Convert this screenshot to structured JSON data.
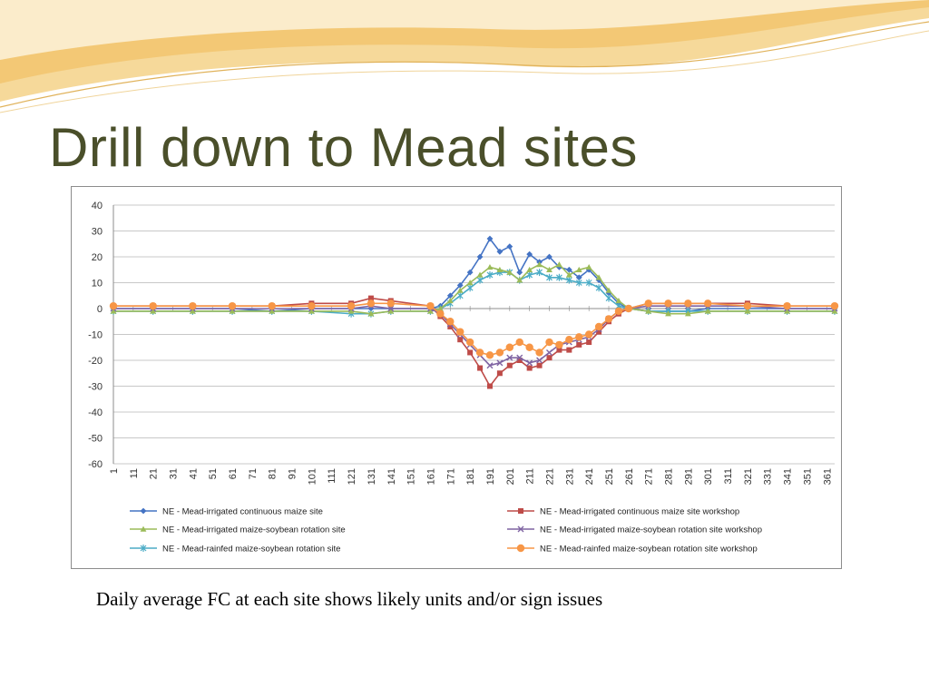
{
  "slide": {
    "title": "Drill down to Mead sites",
    "caption": "Daily average FC at each site shows likely units and/or sign issues"
  },
  "colors": {
    "title": "#4a4f2a",
    "banner": "#f2c46e",
    "series": [
      "#4473c4",
      "#be4b48",
      "#9bbb59",
      "#7f64a2",
      "#4bacc6",
      "#f79646"
    ]
  },
  "chart_data": {
    "type": "line",
    "title": "",
    "xlabel": "",
    "ylabel": "",
    "ylim": [
      -60,
      40
    ],
    "yticks": [
      40,
      30,
      20,
      10,
      0,
      -10,
      -20,
      -30,
      -40,
      -50,
      -60
    ],
    "xlim": [
      1,
      365
    ],
    "xticks": [
      1,
      11,
      21,
      31,
      41,
      51,
      61,
      71,
      81,
      91,
      101,
      111,
      121,
      131,
      141,
      151,
      161,
      171,
      181,
      191,
      201,
      211,
      221,
      231,
      241,
      251,
      261,
      271,
      281,
      291,
      301,
      311,
      321,
      331,
      341,
      351,
      361
    ],
    "grid": "horizontal",
    "legend_position": "bottom",
    "x": [
      1,
      21,
      41,
      61,
      81,
      101,
      121,
      131,
      141,
      161,
      166,
      171,
      176,
      181,
      186,
      191,
      196,
      201,
      206,
      211,
      216,
      221,
      226,
      231,
      236,
      241,
      246,
      251,
      256,
      261,
      271,
      281,
      291,
      301,
      321,
      341,
      365
    ],
    "series": [
      {
        "name": "NE - Mead-irrigated continuous maize site",
        "marker": "diamond",
        "values": [
          0,
          0,
          0,
          0,
          -1,
          0,
          0,
          0,
          0,
          0,
          1,
          5,
          9,
          14,
          20,
          27,
          22,
          24,
          14,
          21,
          18,
          20,
          16,
          15,
          12,
          15,
          11,
          6,
          2,
          0,
          -1,
          -1,
          -1,
          0,
          0,
          0,
          0
        ]
      },
      {
        "name": "NE - Mead-irrigated continuous maize site workshop",
        "marker": "square",
        "values": [
          1,
          1,
          1,
          1,
          1,
          2,
          2,
          4,
          3,
          1,
          -3,
          -7,
          -12,
          -17,
          -23,
          -30,
          -25,
          -22,
          -20,
          -23,
          -22,
          -19,
          -16,
          -16,
          -14,
          -13,
          -9,
          -5,
          -2,
          0,
          2,
          2,
          2,
          2,
          2,
          1,
          1
        ]
      },
      {
        "name": "NE - Mead-irrigated maize-soybean rotation site",
        "marker": "triangle",
        "values": [
          -1,
          -1,
          -1,
          -1,
          -1,
          -1,
          -1,
          -2,
          -1,
          -1,
          0,
          3,
          7,
          10,
          13,
          16,
          15,
          14,
          11,
          15,
          17,
          15,
          17,
          13,
          15,
          16,
          12,
          7,
          3,
          0,
          -1,
          -2,
          -2,
          -1,
          -1,
          -1,
          -1
        ]
      },
      {
        "name": "NE - Mead-irrigated maize-soybean rotation site workshop",
        "marker": "x",
        "values": [
          0,
          0,
          0,
          0,
          0,
          0,
          0,
          1,
          0,
          0,
          -2,
          -6,
          -10,
          -14,
          -18,
          -22,
          -21,
          -19,
          -19,
          -21,
          -20,
          -17,
          -14,
          -13,
          -12,
          -11,
          -8,
          -4,
          -1,
          0,
          1,
          1,
          1,
          1,
          1,
          0,
          0
        ]
      },
      {
        "name": "NE - Mead-rainfed maize-soybean rotation site",
        "marker": "star",
        "values": [
          -1,
          -1,
          -1,
          -1,
          -1,
          -1,
          -2,
          -2,
          -1,
          -1,
          0,
          2,
          5,
          8,
          11,
          13,
          14,
          14,
          11,
          13,
          14,
          12,
          12,
          11,
          10,
          10,
          8,
          4,
          1,
          0,
          -1,
          -1,
          -1,
          -1,
          -1,
          -1,
          -1
        ]
      },
      {
        "name": "NE - Mead-rainfed maize-soybean rotation site workshop",
        "marker": "circle",
        "values": [
          1,
          1,
          1,
          1,
          1,
          1,
          1,
          2,
          2,
          1,
          -2,
          -5,
          -9,
          -13,
          -17,
          -18,
          -17,
          -15,
          -13,
          -15,
          -17,
          -13,
          -14,
          -12,
          -11,
          -10,
          -7,
          -4,
          -1,
          0,
          2,
          2,
          2,
          2,
          1,
          1,
          1
        ]
      }
    ]
  }
}
